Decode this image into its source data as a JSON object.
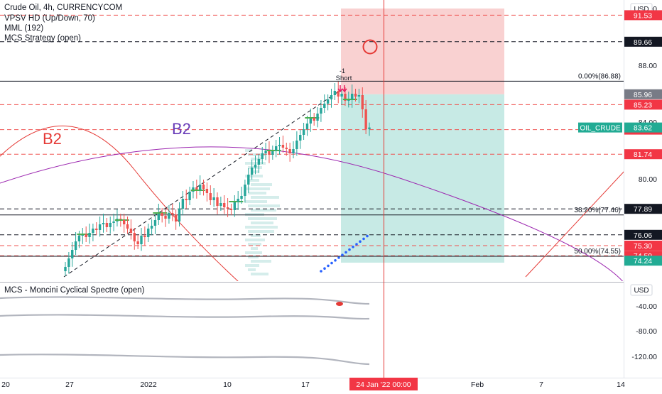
{
  "header": {
    "symbol_line": "Crude Oil, 4h, CURRENCYCOM",
    "indicators": [
      "VPSV HD (Up/Down, 70)",
      "MML (192)",
      "MCS Strategy (open)"
    ],
    "lower_pane_title": "MCS - Moncini Cyclical Spectre (open)",
    "currency_label": "USD",
    "lower_currency_label": "USD",
    "symbol_tag": "OIL_CRUDE"
  },
  "annotations": {
    "cycle_label_red": "B2",
    "cycle_label_purple": "B2",
    "signal_top": "-1",
    "signal_label": "Short"
  },
  "colors": {
    "bull": "#26a69a",
    "bear": "#ef5350",
    "volume_profile": "#b2dfdb",
    "green_hline": "#4caf50",
    "purple_arc": "#9c27b0",
    "red_line": "#e53935",
    "stop_zone": "#f8c9c9",
    "target_zone": "#b4e3dc",
    "dots": "#2962ff",
    "lower_lines": "#b2b5be",
    "price_tag": "#22ab94",
    "label_red": "#f23645",
    "axis_text": "#131722"
  },
  "chart_data": {
    "type": "candlestick",
    "title": "Crude Oil, 4h, CURRENCYCOM",
    "ylim": [
      73.1,
      92.6
    ],
    "x_ticks": [
      "20",
      "27",
      "2022",
      "10",
      "17",
      "24 Jan '22   00:00",
      "Feb",
      "7",
      "14"
    ],
    "price_scale_ticks": [
      "92.00",
      "88.00",
      "84.00",
      "80.00",
      "76.00"
    ],
    "last_price": 83.62,
    "last_price_label": "83.62",
    "price_levels": [
      {
        "value": 91.53,
        "label": "91.53",
        "style": "red-dashed"
      },
      {
        "value": 89.66,
        "label": "89.66",
        "style": "black-dashed"
      },
      {
        "value": 85.96,
        "label": "85.96",
        "style": "grey-box"
      },
      {
        "value": 85.23,
        "label": "85.23",
        "style": "red-dashed"
      },
      {
        "value": 83.47,
        "label": "83.47",
        "style": "red-dashed"
      },
      {
        "value": 81.74,
        "label": "81.74",
        "style": "red-dashed"
      },
      {
        "value": 77.89,
        "label": "77.89",
        "style": "black-dashed"
      },
      {
        "value": 76.06,
        "label": "76.06",
        "style": "black-dashed"
      },
      {
        "value": 75.3,
        "label": "75.30",
        "style": "red-dashed"
      },
      {
        "value": 74.59,
        "label": "74.59",
        "style": "red-dashed"
      },
      {
        "value": 74.24,
        "label": "74.24",
        "style": "green-box"
      }
    ],
    "fib_levels": [
      {
        "value": 86.88,
        "label": "0.00%(86.88)"
      },
      {
        "value": 77.46,
        "label": "38.20%(77.46)"
      },
      {
        "value": 74.55,
        "label": "50.00%(74.55)"
      }
    ],
    "trade_box": {
      "entry": 85.96,
      "stop": 92.0,
      "target": 74.1
    },
    "close_series": [
      73.8,
      74.4,
      75.0,
      75.6,
      76.0,
      76.1,
      75.9,
      76.2,
      76.5,
      76.4,
      76.8,
      76.9,
      76.6,
      76.9,
      77.0,
      77.2,
      77.1,
      76.8,
      76.5,
      76.2,
      75.6,
      75.4,
      76.0,
      75.9,
      76.5,
      76.7,
      77.1,
      77.6,
      77.4,
      77.2,
      77.6,
      77.5,
      77.0,
      77.9,
      78.6,
      78.5,
      79.1,
      79.4,
      79.2,
      79.6,
      79.3,
      79.0,
      78.5,
      78.7,
      78.1,
      78.3,
      78.0,
      77.9,
      77.8,
      78.4,
      78.6,
      78.8,
      79.6,
      80.3,
      80.8,
      81.0,
      81.4,
      81.8,
      82.0,
      81.7,
      82.0,
      82.3,
      82.4,
      82.2,
      82.1,
      81.8,
      82.1,
      82.7,
      83.1,
      83.5,
      83.9,
      84.3,
      84.1,
      84.6,
      85.0,
      85.3,
      85.6,
      85.9,
      86.2,
      85.8,
      86.0,
      85.5,
      85.6,
      86.0,
      85.8,
      85.9,
      84.9,
      83.5,
      83.62
    ],
    "lower_pane_ticks": [
      "-40.00",
      "-80.00",
      "-120.00"
    ]
  }
}
